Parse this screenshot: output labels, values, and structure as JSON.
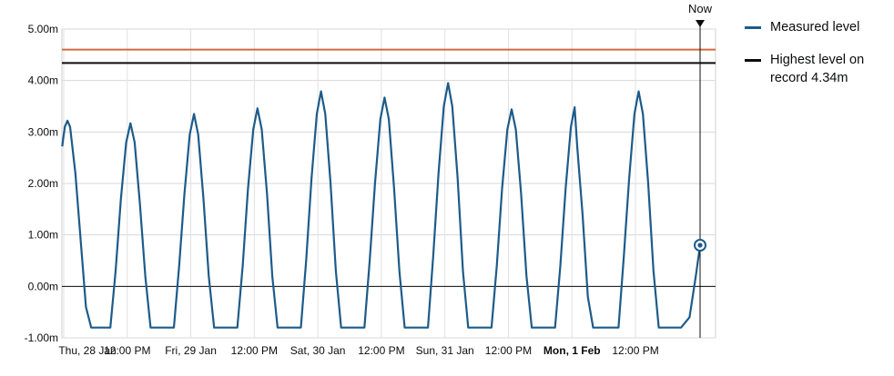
{
  "chart_data": {
    "type": "line",
    "ylim": [
      -1.0,
      5.0
    ],
    "yticks": [
      -1,
      0,
      1,
      2,
      3,
      4,
      5
    ],
    "ytick_labels": [
      "-1.00m",
      "0.00m",
      "1.00m",
      "2.00m",
      "3.00m",
      "4.00m",
      "5.00m"
    ],
    "x_range_hours": [
      0,
      123
    ],
    "xticks": [
      {
        "hour": 0,
        "label": "Thu, 28 Jan",
        "bold": false
      },
      {
        "hour": 12,
        "label": "12:00 PM",
        "bold": false
      },
      {
        "hour": 24,
        "label": "Fri, 29 Jan",
        "bold": false
      },
      {
        "hour": 36,
        "label": "12:00 PM",
        "bold": false
      },
      {
        "hour": 48,
        "label": "Sat, 30 Jan",
        "bold": false
      },
      {
        "hour": 60,
        "label": "12:00 PM",
        "bold": false
      },
      {
        "hour": 72,
        "label": "Sun, 31 Jan",
        "bold": false
      },
      {
        "hour": 84,
        "label": "12:00 PM",
        "bold": false
      },
      {
        "hour": 96,
        "label": "Mon, 1 Feb",
        "bold": true
      },
      {
        "hour": 108,
        "label": "12:00 PM",
        "bold": true
      }
    ],
    "now": {
      "hour": 120.2,
      "label": "Now",
      "value": 0.8
    },
    "series": [
      {
        "name": "Measured level",
        "color": "#1d5b8a",
        "points": [
          [
            -0.3,
            2.72
          ],
          [
            0.2,
            3.1
          ],
          [
            0.7,
            3.22
          ],
          [
            1.2,
            3.1
          ],
          [
            2.2,
            2.2
          ],
          [
            3.2,
            0.9
          ],
          [
            4.2,
            -0.4
          ],
          [
            5.2,
            -0.8
          ],
          [
            8.8,
            -0.8
          ],
          [
            9.8,
            0.3
          ],
          [
            10.8,
            1.7
          ],
          [
            11.8,
            2.8
          ],
          [
            12.6,
            3.17
          ],
          [
            13.4,
            2.8
          ],
          [
            14.4,
            1.6
          ],
          [
            15.4,
            0.2
          ],
          [
            16.4,
            -0.8
          ],
          [
            20.8,
            -0.8
          ],
          [
            21.8,
            0.4
          ],
          [
            22.8,
            1.8
          ],
          [
            23.8,
            2.95
          ],
          [
            24.6,
            3.35
          ],
          [
            25.4,
            2.95
          ],
          [
            26.4,
            1.7
          ],
          [
            27.4,
            0.2
          ],
          [
            28.4,
            -0.8
          ],
          [
            32.8,
            -0.8
          ],
          [
            33.8,
            0.4
          ],
          [
            34.8,
            1.9
          ],
          [
            35.8,
            3.05
          ],
          [
            36.6,
            3.46
          ],
          [
            37.4,
            3.05
          ],
          [
            38.4,
            1.8
          ],
          [
            39.4,
            0.2
          ],
          [
            40.4,
            -0.8
          ],
          [
            44.8,
            -0.8
          ],
          [
            45.8,
            0.5
          ],
          [
            46.8,
            2.1
          ],
          [
            47.8,
            3.35
          ],
          [
            48.6,
            3.79
          ],
          [
            49.4,
            3.35
          ],
          [
            50.4,
            2.0
          ],
          [
            51.4,
            0.3
          ],
          [
            52.4,
            -0.8
          ],
          [
            56.8,
            -0.8
          ],
          [
            57.8,
            0.5
          ],
          [
            58.8,
            2.0
          ],
          [
            59.8,
            3.25
          ],
          [
            60.6,
            3.67
          ],
          [
            61.4,
            3.25
          ],
          [
            62.4,
            1.9
          ],
          [
            63.4,
            0.3
          ],
          [
            64.4,
            -0.8
          ],
          [
            68.8,
            -0.8
          ],
          [
            69.8,
            0.6
          ],
          [
            70.8,
            2.2
          ],
          [
            71.8,
            3.5
          ],
          [
            72.6,
            3.95
          ],
          [
            73.4,
            3.5
          ],
          [
            74.4,
            2.1
          ],
          [
            75.4,
            0.3
          ],
          [
            76.4,
            -0.8
          ],
          [
            80.8,
            -0.8
          ],
          [
            81.8,
            0.4
          ],
          [
            82.8,
            1.9
          ],
          [
            83.8,
            3.05
          ],
          [
            84.6,
            3.44
          ],
          [
            85.4,
            3.05
          ],
          [
            86.4,
            1.8
          ],
          [
            87.4,
            0.2
          ],
          [
            88.4,
            -0.8
          ],
          [
            92.8,
            -0.8
          ],
          [
            93.8,
            0.4
          ],
          [
            94.8,
            1.9
          ],
          [
            95.8,
            3.1
          ],
          [
            96.5,
            3.48
          ],
          [
            97.0,
            2.7
          ],
          [
            98.0,
            1.4
          ],
          [
            99.0,
            -0.2
          ],
          [
            100.0,
            -0.8
          ],
          [
            104.8,
            -0.8
          ],
          [
            105.8,
            0.6
          ],
          [
            106.8,
            2.1
          ],
          [
            107.8,
            3.35
          ],
          [
            108.6,
            3.79
          ],
          [
            109.4,
            3.35
          ],
          [
            110.4,
            2.0
          ],
          [
            111.4,
            0.3
          ],
          [
            112.4,
            -0.8
          ],
          [
            116.6,
            -0.8
          ],
          [
            118.2,
            -0.6
          ],
          [
            119.4,
            0.2
          ],
          [
            120.2,
            0.8
          ]
        ]
      }
    ],
    "reference_lines": [
      {
        "value": 4.6,
        "color": "#d4693f",
        "label": ""
      },
      {
        "value": 4.34,
        "color": "#0b0c0c",
        "label": "Highest level on record 4.34m"
      }
    ],
    "zero_line": {
      "value": 0,
      "color": "#0b0c0c"
    },
    "grid": true,
    "legend_position": "right"
  },
  "legend": {
    "items": [
      {
        "label": "Measured level",
        "color": "#1d5b8a"
      },
      {
        "label": "Highest level on record 4.34m",
        "color": "#0b0c0c"
      }
    ]
  }
}
